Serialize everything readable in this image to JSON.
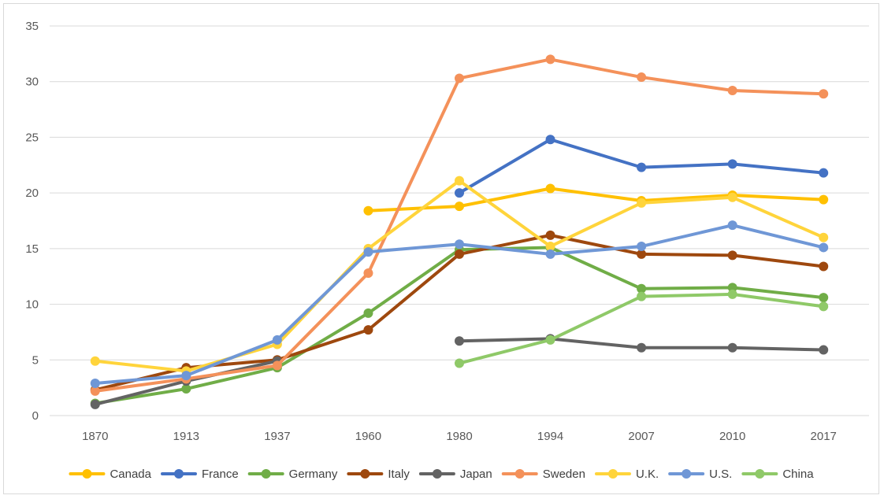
{
  "chart_data": {
    "type": "line",
    "categories": [
      "1870",
      "1913",
      "1937",
      "1960",
      "1980",
      "1994",
      "2007",
      "2010",
      "2017"
    ],
    "ylim": [
      0,
      35
    ],
    "yticks": [
      0,
      5,
      10,
      15,
      20,
      25,
      30,
      35
    ],
    "grid": true,
    "legend_position": "bottom",
    "series": [
      {
        "name": "Canada",
        "color": "#FFC000",
        "values": [
          null,
          null,
          null,
          18.4,
          18.8,
          20.4,
          19.3,
          19.8,
          19.4
        ]
      },
      {
        "name": "France",
        "color": "#4472C4",
        "values": [
          null,
          null,
          null,
          null,
          20.0,
          24.8,
          22.3,
          22.6,
          21.8
        ]
      },
      {
        "name": "Germany",
        "color": "#70AD47",
        "values": [
          1.1,
          2.4,
          4.3,
          9.2,
          14.9,
          15.1,
          11.4,
          11.5,
          10.6
        ]
      },
      {
        "name": "Italy",
        "color": "#9E480E",
        "values": [
          2.3,
          4.3,
          5.0,
          7.7,
          14.5,
          16.2,
          14.5,
          14.4,
          13.4
        ]
      },
      {
        "name": "Japan",
        "color": "#636363",
        "values": [
          1.0,
          3.1,
          4.9,
          null,
          6.7,
          6.9,
          6.1,
          6.1,
          5.9
        ]
      },
      {
        "name": "Sweden",
        "color": "#F4915A",
        "values": [
          2.2,
          3.3,
          4.5,
          12.8,
          30.3,
          32.0,
          30.4,
          29.2,
          28.9
        ]
      },
      {
        "name": "U.K.",
        "color": "#FFD43B",
        "values": [
          4.9,
          4.0,
          6.4,
          15.0,
          21.1,
          15.2,
          19.1,
          19.6,
          16.0
        ]
      },
      {
        "name": "U.S.",
        "color": "#6F97D6",
        "values": [
          2.9,
          3.6,
          6.8,
          14.7,
          15.4,
          14.5,
          15.2,
          17.1,
          15.1
        ]
      },
      {
        "name": "China",
        "color": "#8FC968",
        "values": [
          null,
          null,
          null,
          null,
          4.7,
          6.8,
          10.7,
          10.9,
          9.8
        ]
      }
    ]
  }
}
